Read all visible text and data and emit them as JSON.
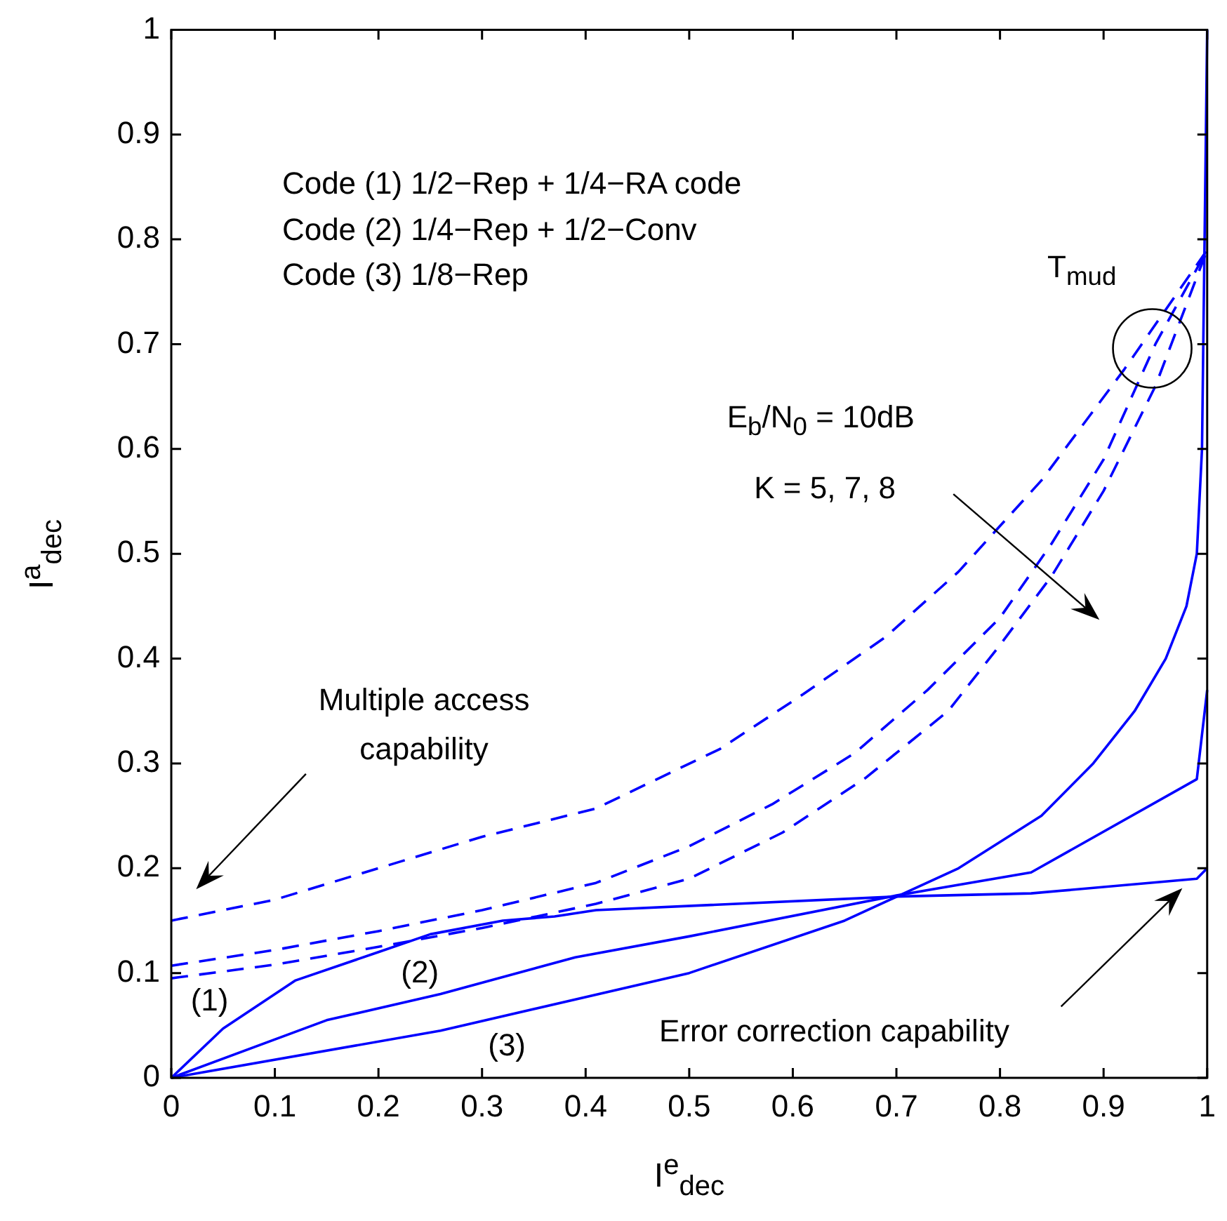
{
  "chart_data": {
    "type": "line",
    "xlabel": "I$^{e}$$_{dec}$",
    "ylabel": "I$^{a}$$_{dec}$",
    "xlim": [
      0,
      1
    ],
    "ylim": [
      0,
      1
    ],
    "xticks": [
      0,
      0.1,
      0.2,
      0.3,
      0.4,
      0.5,
      0.6,
      0.7,
      0.8,
      0.9,
      1
    ],
    "yticks": [
      0,
      0.1,
      0.2,
      0.3,
      0.4,
      0.5,
      0.6,
      0.7,
      0.8,
      0.9,
      1
    ],
    "grid": false,
    "legend": false,
    "marker": "none",
    "series": [
      {
        "color": "#0000ff",
        "line_style": "solid",
        "x": [
          0,
          0.05,
          0.12,
          0.2,
          0.25,
          0.32,
          0.37,
          0.41,
          0.7,
          0.83,
          0.99,
          1
        ],
        "values": [
          0,
          0.047,
          0.093,
          0.12,
          0.137,
          0.15,
          0.154,
          0.16,
          0.173,
          0.176,
          0.19,
          0.2
        ]
      },
      {
        "color": "#0000ff",
        "line_style": "solid",
        "x": [
          0,
          0.15,
          0.26,
          0.39,
          0.5,
          0.7,
          0.83,
          0.99,
          1
        ],
        "values": [
          0,
          0.055,
          0.08,
          0.115,
          0.135,
          0.174,
          0.196,
          0.285,
          0.37
        ]
      },
      {
        "color": "#0000ff",
        "line_style": "solid",
        "x": [
          0,
          0.26,
          0.5,
          0.65,
          0.76,
          0.84,
          0.89,
          0.93,
          0.96,
          0.98,
          0.99,
          0.995,
          1
        ],
        "values": [
          0,
          0.045,
          0.1,
          0.15,
          0.2,
          0.25,
          0.3,
          0.35,
          0.4,
          0.45,
          0.5,
          0.6,
          1
        ]
      },
      {
        "color": "#0000ff",
        "line_style": "dashed",
        "x": [
          0,
          0.1,
          0.2,
          0.3,
          0.41,
          0.53,
          0.61,
          0.69,
          0.76,
          0.84,
          0.92,
          1
        ],
        "values": [
          0.15,
          0.17,
          0.2,
          0.23,
          0.257,
          0.314,
          0.366,
          0.421,
          0.483,
          0.57,
          0.676,
          0.79
        ]
      },
      {
        "color": "#0000ff",
        "line_style": "dashed",
        "x": [
          0,
          0.1,
          0.2,
          0.3,
          0.41,
          0.5,
          0.58,
          0.66,
          0.73,
          0.8,
          0.85,
          0.9,
          0.95,
          1
        ],
        "values": [
          0.107,
          0.122,
          0.14,
          0.16,
          0.186,
          0.221,
          0.261,
          0.31,
          0.37,
          0.439,
          0.51,
          0.59,
          0.7,
          0.79
        ]
      },
      {
        "color": "#0000ff",
        "line_style": "dashed",
        "x": [
          0,
          0.1,
          0.2,
          0.3,
          0.41,
          0.5,
          0.59,
          0.67,
          0.75,
          0.8,
          0.85,
          0.9,
          0.95,
          1
        ],
        "values": [
          0.095,
          0.108,
          0.125,
          0.143,
          0.166,
          0.19,
          0.234,
          0.286,
          0.35,
          0.413,
          0.479,
          0.56,
          0.66,
          0.79
        ]
      }
    ],
    "annotations": [
      "Code (1) 1/2−Rep + 1/4−RA code",
      "Code (2) 1/4−Rep + 1/2−Conv",
      "Code (3) 1/8−Rep",
      "T$_{mud}$",
      "E$_{b}$/N$_{0}$ = 10dB",
      "K = 5, 7, 8",
      "Multiple access",
      "capability",
      "Error correction capability",
      "(1)",
      "(2)",
      "(3)"
    ]
  }
}
